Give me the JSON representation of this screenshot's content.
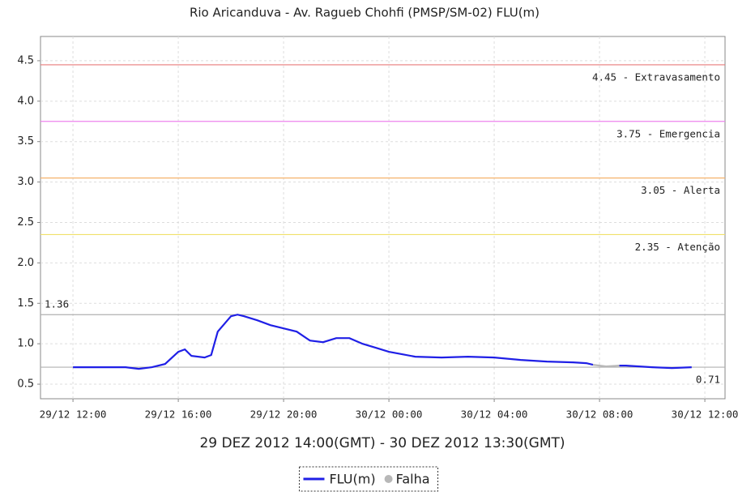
{
  "chart_data": {
    "type": "line",
    "title": "Rio Aricanduva - Av. Ragueb Chohfi (PMSP/SM-02) FLU(m)",
    "x_label": "29 DEZ 2012 14:00(GMT) - 30 DEZ 2012 13:30(GMT)",
    "x": [
      "29/12 12:00",
      "29/12 13:00",
      "29/12 14:00",
      "29/12 14:30",
      "29/12 15:00",
      "29/12 15:30",
      "29/12 16:00",
      "29/12 16:15",
      "29/12 16:30",
      "29/12 17:00",
      "29/12 17:15",
      "29/12 17:30",
      "29/12 18:00",
      "29/12 18:15",
      "29/12 18:30",
      "29/12 19:00",
      "29/12 19:30",
      "29/12 20:00",
      "29/12 20:30",
      "29/12 21:00",
      "29/12 21:30",
      "29/12 22:00",
      "29/12 22:30",
      "29/12 23:00",
      "29/12 23:30",
      "30/12 00:00",
      "30/12 00:30",
      "30/12 01:00",
      "30/12 02:00",
      "30/12 03:00",
      "30/12 04:00",
      "30/12 05:00",
      "30/12 06:00",
      "30/12 07:00",
      "30/12 07:30",
      "30/12 07:45",
      "30/12 08:15",
      "30/12 08:45",
      "30/12 09:00",
      "30/12 10:00",
      "30/12 10:45",
      "30/12 11:30"
    ],
    "series": [
      {
        "name": "FLU(m)",
        "color": "#1f1fe6",
        "values": [
          0.71,
          0.71,
          0.71,
          0.69,
          0.71,
          0.75,
          0.9,
          0.93,
          0.85,
          0.83,
          0.86,
          1.15,
          1.34,
          1.36,
          1.34,
          1.29,
          1.23,
          1.19,
          1.15,
          1.04,
          1.02,
          1.07,
          1.07,
          1.0,
          0.95,
          0.9,
          0.87,
          0.84,
          0.83,
          0.84,
          0.83,
          0.8,
          0.78,
          0.77,
          0.76,
          0.74,
          null,
          0.73,
          0.73,
          0.71,
          0.7,
          0.71
        ]
      },
      {
        "name": "Falha",
        "color": "#b8b8b8",
        "marker": "circle",
        "values": [
          null,
          null,
          null,
          null,
          null,
          null,
          null,
          null,
          null,
          null,
          null,
          null,
          null,
          null,
          null,
          null,
          null,
          null,
          null,
          null,
          null,
          null,
          null,
          null,
          null,
          null,
          null,
          null,
          null,
          null,
          null,
          null,
          null,
          null,
          null,
          0.74,
          0.72,
          0.73,
          null,
          null,
          null,
          null
        ]
      }
    ],
    "reference_lines": [
      {
        "value": 4.45,
        "label": "4.45 - Extravasamento",
        "color": "#e87b7b"
      },
      {
        "value": 3.75,
        "label": "3.75 - Emergencia",
        "color": "#ee82ee"
      },
      {
        "value": 3.05,
        "label": "3.05 - Alerta",
        "color": "#f5b26b"
      },
      {
        "value": 2.35,
        "label": "2.35 - Atenção",
        "color": "#f0e06a"
      },
      {
        "value": 1.36,
        "label": "1.36",
        "color": "#b0b0b0"
      },
      {
        "value": 0.71,
        "label": "0.71",
        "color": "#b0b0b0"
      }
    ],
    "xlim": [
      "29/12 10:46",
      "30/12 12:46"
    ],
    "xticks": [
      "29/12 12:00",
      "29/12 16:00",
      "29/12 20:00",
      "30/12 00:00",
      "30/12 04:00",
      "30/12 08:00",
      "30/12 12:00"
    ],
    "ylim": [
      0.32,
      4.8
    ],
    "yticks": [
      0.5,
      {
        "value": 1.0,
        "label": "1.0"
      },
      1.5,
      {
        "value": 2.0,
        "label": "2.0"
      },
      2.5,
      {
        "value": 3.0,
        "label": "3.0"
      },
      3.5,
      {
        "value": 4.0,
        "label": "4.0"
      },
      4.5
    ],
    "grid": true,
    "legend": "bottom"
  }
}
